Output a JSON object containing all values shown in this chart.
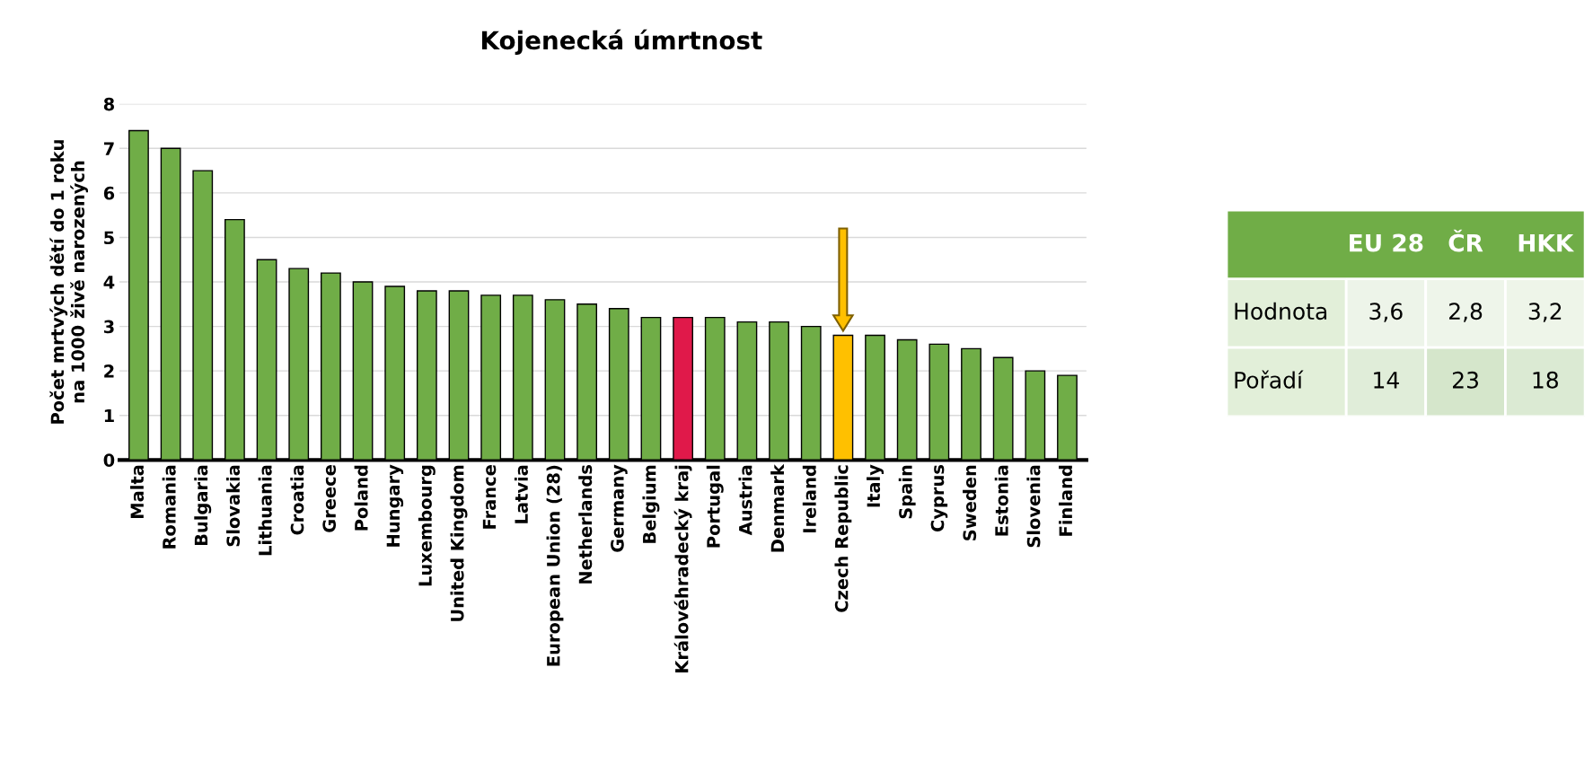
{
  "chart_data": [
    {
      "type": "bar",
      "title": "Kojenecká úmrtnost",
      "ylabel": "Počet mrtvých dětí do 1 roku\nna 1000 živě narozených",
      "categories": [
        "Malta",
        "Romania",
        "Bulgaria",
        "Slovakia",
        "Lithuania",
        "Croatia",
        "Greece",
        "Poland",
        "Hungary",
        "Luxembourg",
        "United Kingdom",
        "France",
        "Latvia",
        "European Union (28)",
        "Netherlands",
        "Germany",
        "Belgium",
        "Královéhradecký kraj",
        "Portugal",
        "Austria",
        "Denmark",
        "Ireland",
        "Czech Republic",
        "Italy",
        "Spain",
        "Cyprus",
        "Sweden",
        "Estonia",
        "Slovenia",
        "Finland"
      ],
      "values": [
        7.4,
        7.0,
        6.5,
        5.4,
        4.5,
        4.3,
        4.2,
        4.0,
        3.9,
        3.8,
        3.8,
        3.7,
        3.7,
        3.6,
        3.5,
        3.4,
        3.2,
        3.2,
        3.2,
        3.1,
        3.1,
        3.0,
        2.8,
        2.8,
        2.7,
        2.6,
        2.5,
        2.3,
        2.0,
        1.9
      ],
      "colors": [
        "#70ad47",
        "#70ad47",
        "#70ad47",
        "#70ad47",
        "#70ad47",
        "#70ad47",
        "#70ad47",
        "#70ad47",
        "#70ad47",
        "#70ad47",
        "#70ad47",
        "#70ad47",
        "#70ad47",
        "#70ad47",
        "#70ad47",
        "#70ad47",
        "#70ad47",
        "#e0194a",
        "#70ad47",
        "#70ad47",
        "#70ad47",
        "#70ad47",
        "#ffc000",
        "#70ad47",
        "#70ad47",
        "#70ad47",
        "#70ad47",
        "#70ad47",
        "#70ad47",
        "#70ad47"
      ],
      "ylim": [
        0,
        8
      ],
      "yticks": [
        0,
        1,
        2,
        3,
        4,
        5,
        6,
        7,
        8
      ],
      "grid": "y",
      "legend": false
    },
    {
      "type": "heatmap",
      "categories": [
        "EU 28",
        "ČR",
        "HKK"
      ],
      "y_categories": [
        "Hodnota",
        "Pořadí"
      ],
      "cells": [
        [
          3.6,
          2.8,
          3.2
        ],
        [
          14,
          23,
          18
        ]
      ],
      "cell_labels": [
        [
          "3,6",
          "2,8",
          "3,2"
        ],
        [
          "14",
          "23",
          "18"
        ]
      ]
    }
  ]
}
